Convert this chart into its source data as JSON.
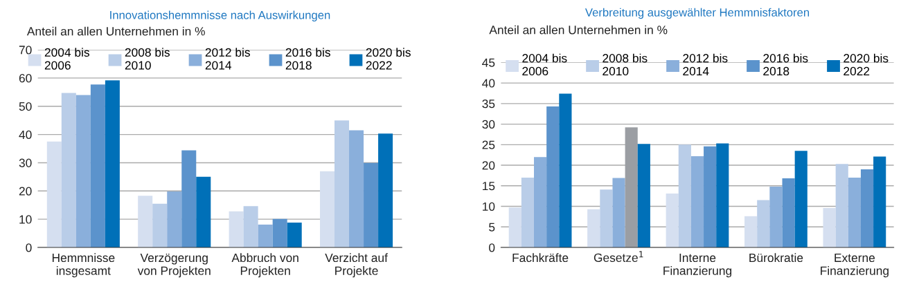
{
  "chart_data": [
    {
      "type": "bar",
      "title": "Innovationshemmnisse nach Auswirkungen",
      "ylabel": "Anteil an allen Unternehmen in %",
      "categories": [
        "Hemmnisse\ninsgesamt",
        "Verzögerung\nvon Projekten",
        "Abbruch von\nProjekten",
        "Verzicht auf\nProjekte"
      ],
      "series": [
        {
          "name": "2004 bis\n2006",
          "color": "#d5dff0",
          "values": [
            37.5,
            18.3,
            12.8,
            27
          ]
        },
        {
          "name": "2008 bis\n2010",
          "color": "#b9cde8",
          "values": [
            54.7,
            15.5,
            14.6,
            45
          ]
        },
        {
          "name": "2012 bis\n2014",
          "color": "#8aafdb",
          "values": [
            54,
            19.8,
            8.1,
            41.5
          ]
        },
        {
          "name": "2016 bis\n2018",
          "color": "#5b93cc",
          "values": [
            57.7,
            34.4,
            10.1,
            29.9
          ]
        },
        {
          "name": "2020 bis\n2022",
          "color": "#0070b8",
          "values": [
            59.2,
            25,
            8.8,
            40.3
          ]
        }
      ],
      "ylim": [
        0,
        70
      ],
      "yticks": [
        0,
        10,
        20,
        30,
        40,
        50,
        60,
        70
      ],
      "grid": "y",
      "legend": "top"
    },
    {
      "type": "bar",
      "title": "Verbreitung ausgewählter Hemmnisfaktoren",
      "ylabel": "Anteil an allen Unternehmen in %",
      "categories": [
        "Fachkräfte",
        "Gesetze$^{1}$",
        "Interne\nFinanzierung",
        "Bürokratie",
        "Externe\nFinanzierung"
      ],
      "series": [
        {
          "name": "2004 bis\n2006",
          "color": "#d5dff0",
          "values": [
            9.7,
            9.3,
            13.1,
            7.6,
            9.6
          ]
        },
        {
          "name": "2008 bis\n2010",
          "color": "#b9cde8",
          "values": [
            17,
            14.1,
            25,
            11.5,
            20.3
          ]
        },
        {
          "name": "2012 bis\n2014",
          "color": "#8aafdb",
          "values": [
            22,
            16.9,
            22.2,
            14.8,
            17
          ]
        },
        {
          "name": "2016 bis\n2018",
          "color": "#5b93cc",
          "colors": [
            "#5b93cc",
            "#9b9ea3",
            "#5b93cc",
            "#5b93cc",
            "#5b93cc"
          ],
          "values": [
            34.3,
            29.2,
            24.6,
            16.8,
            19
          ]
        },
        {
          "name": "2020 bis\n2022",
          "color": "#0070b8",
          "values": [
            37.4,
            25.2,
            25.3,
            23.5,
            22.1
          ]
        }
      ],
      "ylim": [
        0,
        45
      ],
      "yticks": [
        0,
        5,
        10,
        15,
        20,
        25,
        30,
        35,
        40,
        45
      ],
      "grid": "y",
      "legend": "top"
    }
  ]
}
